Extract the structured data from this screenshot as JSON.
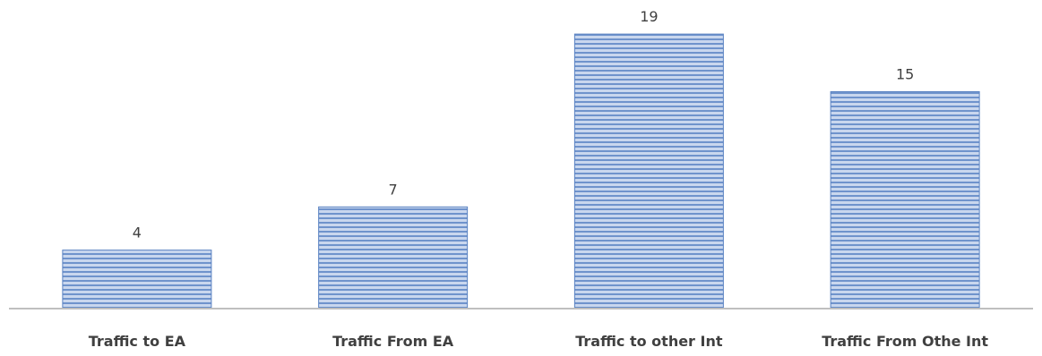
{
  "chart_data": {
    "type": "bar",
    "categories": [
      "Traffic to EA",
      "Traffic From EA",
      "Traffic to other Int",
      "Traffic From Othe Int"
    ],
    "values": [
      4,
      7,
      19,
      15
    ],
    "data_labels": [
      "4",
      "7",
      "19",
      "15"
    ],
    "title": "",
    "xlabel": "",
    "ylabel": "",
    "ylim": [
      0,
      20
    ],
    "grid": false,
    "legend": "none",
    "colors": {
      "bar_fill_light": "#c9d7ee",
      "bar_fill_dark": "#6f93cc",
      "bar_stroke": "#5b83c2",
      "axis": "#bfbfbf",
      "text": "#404040"
    }
  }
}
